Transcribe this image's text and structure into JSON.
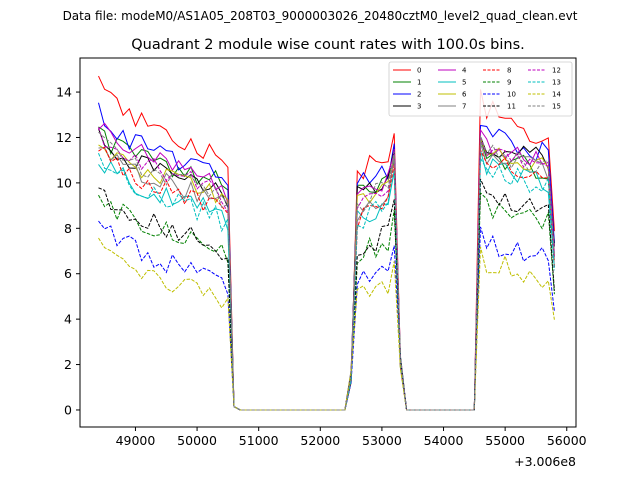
{
  "chart_data": {
    "type": "line",
    "header": "Data file: modeM0/AS1A05_208T03_9000003026_20480cztM0_level2_quad_clean.evt",
    "title": "Quadrant 2 module wise count rates with 100.0s bins.",
    "x_offset_label": "+3.006e8",
    "xlabel": "",
    "ylabel": "",
    "xlim": [
      48100,
      56150
    ],
    "ylim": [
      -0.75,
      15.5
    ],
    "xticks": [
      49000,
      50000,
      51000,
      52000,
      53000,
      54000,
      55000,
      56000
    ],
    "yticks": [
      0,
      2,
      4,
      6,
      8,
      10,
      12,
      14
    ],
    "legend_position": "top-right",
    "segments": [
      [
        48400,
        50600
      ],
      [
        52400,
        53400
      ],
      [
        54500,
        55800
      ]
    ],
    "series": [
      {
        "name": "0",
        "color": "#ff0000",
        "dash": "solid",
        "levels": [
          14.5,
          11.0,
          10.5,
          11.8,
          13.5
        ]
      },
      {
        "name": "1",
        "color": "#008000",
        "dash": "solid",
        "levels": [
          12.2,
          10.0,
          9.8,
          10.5,
          11.2
        ]
      },
      {
        "name": "2",
        "color": "#0000ff",
        "dash": "solid",
        "levels": [
          13.2,
          10.2,
          9.8,
          11.3,
          12.2
        ]
      },
      {
        "name": "3",
        "color": "#000000",
        "dash": "solid",
        "levels": [
          12.0,
          9.6,
          9.6,
          11.0,
          11.6
        ]
      },
      {
        "name": "4",
        "color": "#bf00bf",
        "dash": "solid",
        "levels": [
          12.8,
          9.8,
          9.2,
          10.8,
          11.8
        ]
      },
      {
        "name": "5",
        "color": "#00bfbf",
        "dash": "solid",
        "levels": [
          11.2,
          8.6,
          8.4,
          10.0,
          10.8
        ]
      },
      {
        "name": "6",
        "color": "#bfbf00",
        "dash": "solid",
        "levels": [
          12.0,
          9.4,
          9.0,
          10.6,
          11.2
        ]
      },
      {
        "name": "7",
        "color": "#808080",
        "dash": "solid",
        "levels": [
          11.8,
          9.2,
          8.8,
          10.6,
          11.4
        ]
      },
      {
        "name": "8",
        "color": "#ff0000",
        "dash": "dashed",
        "levels": [
          11.6,
          8.8,
          8.4,
          10.2,
          11.0
        ]
      },
      {
        "name": "9",
        "color": "#008000",
        "dash": "dashed",
        "levels": [
          9.6,
          7.0,
          6.8,
          8.2,
          9.0
        ]
      },
      {
        "name": "10",
        "color": "#0000ff",
        "dash": "dashed",
        "levels": [
          8.4,
          5.6,
          5.8,
          6.6,
          7.4
        ]
      },
      {
        "name": "11",
        "color": "#000000",
        "dash": "dashed",
        "levels": [
          9.8,
          7.2,
          7.0,
          8.6,
          9.4
        ]
      },
      {
        "name": "12",
        "color": "#bf00bf",
        "dash": "dashed",
        "levels": [
          12.4,
          9.6,
          9.0,
          10.8,
          11.6
        ]
      },
      {
        "name": "13",
        "color": "#00bfbf",
        "dash": "dashed",
        "levels": [
          11.2,
          8.4,
          8.2,
          9.8,
          10.6
        ]
      },
      {
        "name": "14",
        "color": "#bfbf00",
        "dash": "dashed",
        "levels": [
          7.4,
          4.9,
          5.3,
          5.8,
          6.6
        ]
      },
      {
        "name": "15",
        "color": "#808080",
        "dash": "dashed",
        "levels": [
          12.0,
          9.4,
          9.0,
          10.6,
          11.4
        ]
      }
    ]
  }
}
